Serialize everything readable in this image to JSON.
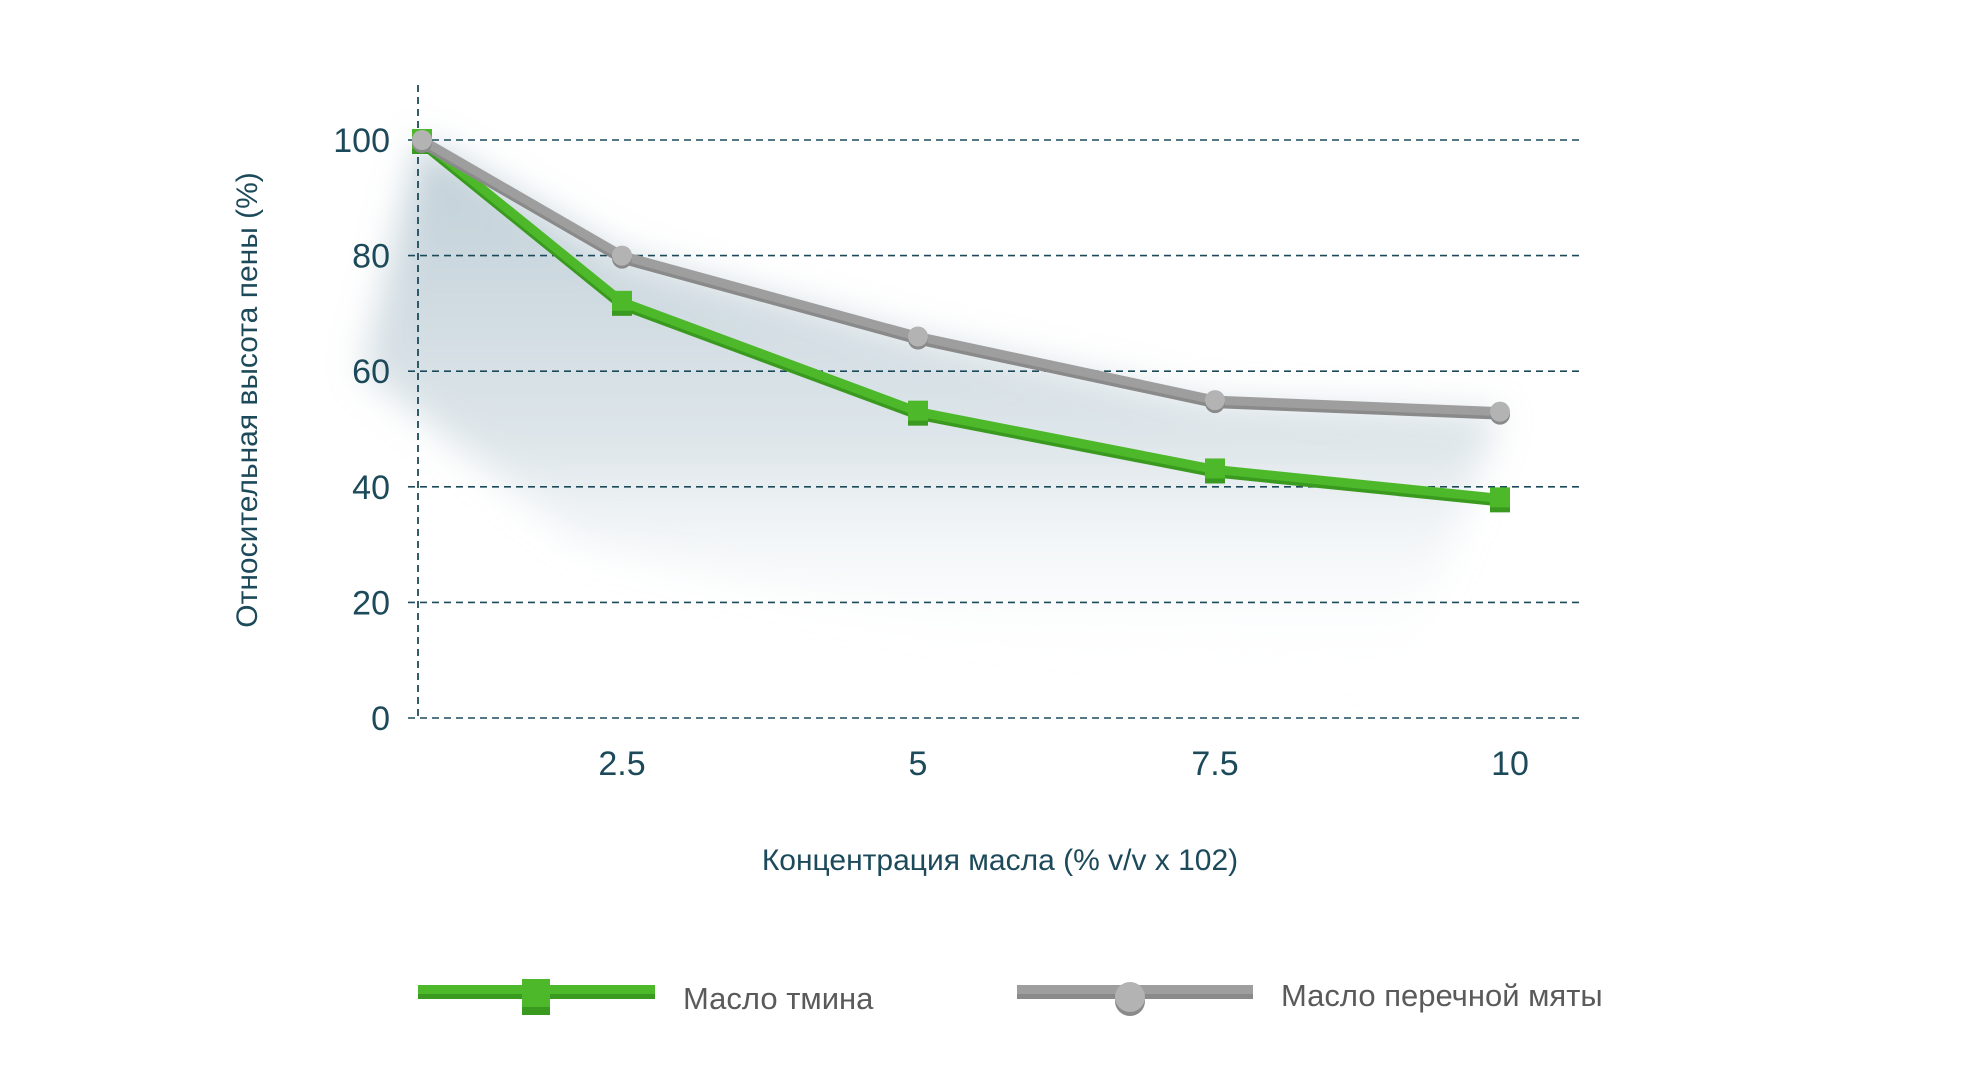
{
  "chart_data": {
    "type": "line",
    "title": "",
    "xlabel": "Концентрация масла (% v/v x 102)",
    "ylabel": "Относительная высота пены (%)",
    "x": [
      0,
      2.5,
      5,
      7.5,
      10
    ],
    "x_tick_labels": [
      "2.5",
      "5",
      "7.5",
      "10"
    ],
    "x_ticks": [
      2.5,
      5,
      7.5,
      10
    ],
    "y_ticks": [
      0,
      20,
      40,
      60,
      80,
      100
    ],
    "y_tick_labels": [
      "0",
      "20",
      "40",
      "60",
      "80",
      "100"
    ],
    "xlim": [
      0,
      10
    ],
    "ylim": [
      0,
      100
    ],
    "grid": "horizontal dashed",
    "legend_position": "bottom",
    "series": [
      {
        "name": "Масло тмина",
        "values": [
          100,
          72,
          53,
          43,
          38
        ],
        "color": "#4cb82a",
        "marker": "square"
      },
      {
        "name": "Масло перечной мяты",
        "values": [
          100,
          80,
          66,
          55,
          53
        ],
        "color": "#9e9e9e",
        "marker": "circle"
      }
    ]
  },
  "colors": {
    "text": "#1d4a5a",
    "grid": "#1d4a5a",
    "legend_text": "#5a5a5a",
    "shadow": "#8aa6b5"
  }
}
